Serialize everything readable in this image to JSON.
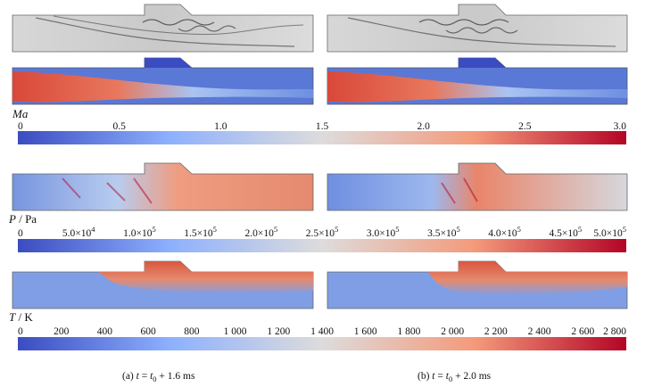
{
  "colorbars": {
    "ma": {
      "label_var": "Ma",
      "ticks": [
        "0",
        "0.5",
        "1.0",
        "1.5",
        "2.0",
        "2.5",
        "3.0"
      ]
    },
    "p": {
      "label_var": "P",
      "label_unit": " / Pa",
      "ticks": [
        {
          "m": "0",
          "e": ""
        },
        {
          "m": "5.0×10",
          "e": "4"
        },
        {
          "m": "1.0×10",
          "e": "5"
        },
        {
          "m": "1.5×10",
          "e": "5"
        },
        {
          "m": "2.0×10",
          "e": "5"
        },
        {
          "m": "2.5×10",
          "e": "5"
        },
        {
          "m": "3.0×10",
          "e": "5"
        },
        {
          "m": "3.5×10",
          "e": "5"
        },
        {
          "m": "4.0×10",
          "e": "5"
        },
        {
          "m": "4.5×10",
          "e": "5"
        },
        {
          "m": "5.0×10",
          "e": "5"
        }
      ]
    },
    "t": {
      "label_var": "T",
      "label_unit": " / K",
      "ticks": [
        "0",
        "200",
        "400",
        "600",
        "800",
        "1 000",
        "1 200",
        "1 400",
        "1 600",
        "1 800",
        "2 000",
        "2 200",
        "2 400",
        "2 600",
        "2 800"
      ]
    }
  },
  "captions": {
    "a": {
      "prefix": "(a) ",
      "t": "t",
      "eq": " = ",
      "t0": "t",
      "sub": "0",
      "rest": " + 1.6 ms"
    },
    "b": {
      "prefix": "(b) ",
      "t": "t",
      "eq": " = ",
      "t0": "t",
      "sub": "0",
      "rest": " + 2.0 ms"
    }
  },
  "colors": {
    "cool": "#3b4cc0",
    "neutral": "#dddcdc",
    "warm": "#b40426"
  }
}
